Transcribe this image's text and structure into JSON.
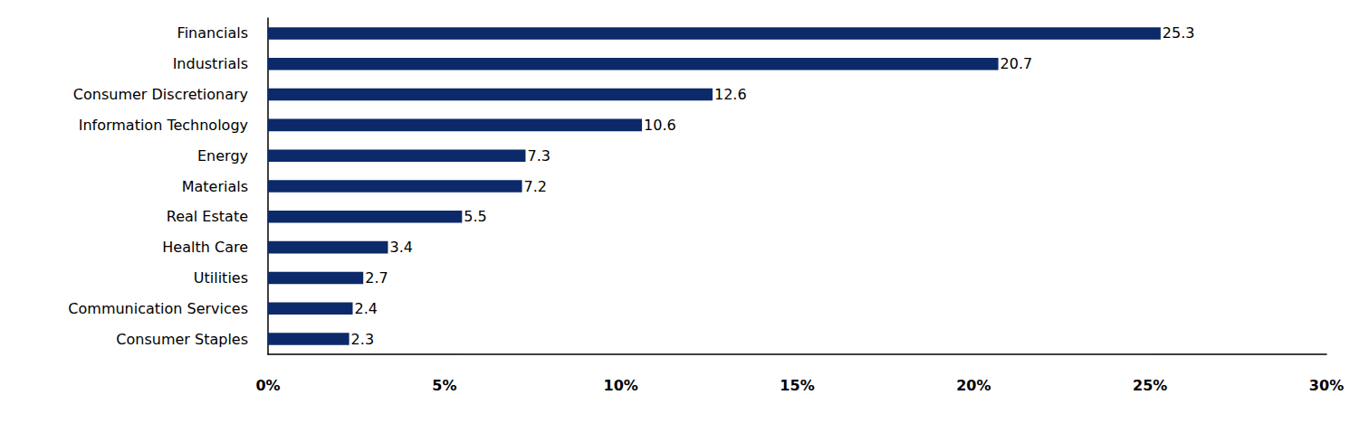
{
  "chart_data": {
    "type": "bar",
    "orientation": "horizontal",
    "categories": [
      "Financials",
      "Industrials",
      "Consumer Discretionary",
      "Information Technology",
      "Energy",
      "Materials",
      "Real Estate",
      "Health Care",
      "Utilities",
      "Communication Services",
      "Consumer Staples"
    ],
    "values": [
      25.3,
      20.7,
      12.6,
      10.6,
      7.3,
      7.2,
      5.5,
      3.4,
      2.7,
      2.4,
      2.3
    ],
    "color": "#0c2a6a",
    "xlim": [
      0,
      30
    ],
    "xticks": [
      {
        "value": 0,
        "label": "0%"
      },
      {
        "value": 5,
        "label": "5%"
      },
      {
        "value": 10,
        "label": "10%"
      },
      {
        "value": 15,
        "label": "15%"
      },
      {
        "value": 20,
        "label": "20%"
      },
      {
        "value": 25,
        "label": "25%"
      },
      {
        "value": 30,
        "label": "30%"
      }
    ],
    "grid": false,
    "data_labels": true
  }
}
